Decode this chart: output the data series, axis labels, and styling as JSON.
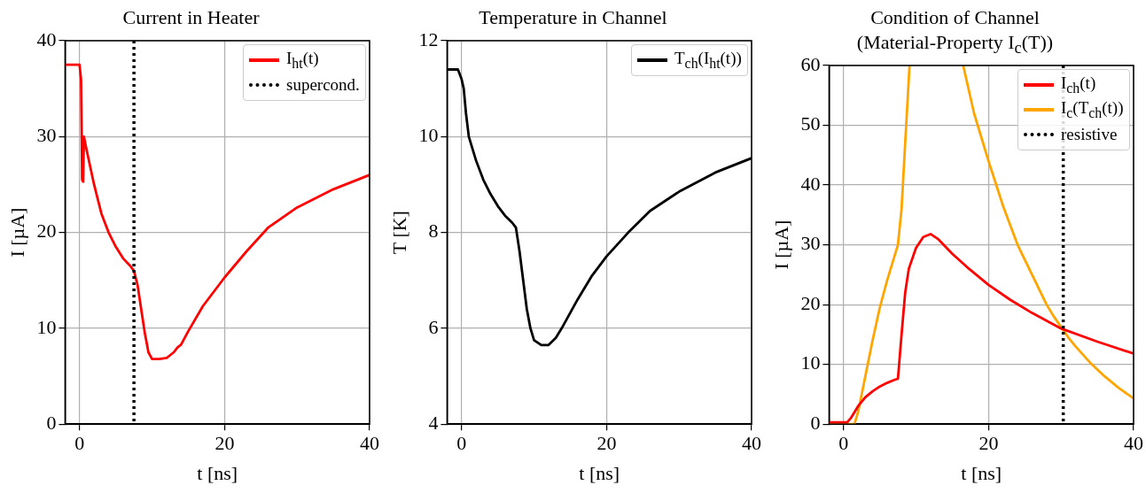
{
  "chart_data": [
    {
      "type": "line",
      "title": "Current in Heater",
      "xlabel": "t [ns]",
      "ylabel": "I [µA]",
      "xlim": [
        -2,
        40
      ],
      "xticks": [
        0,
        20,
        40
      ],
      "ylim": [
        0,
        40
      ],
      "yticks": [
        0,
        10,
        20,
        30,
        40
      ],
      "grid": true,
      "legend": "top right",
      "line_style": "solid",
      "marker": "none",
      "series": [
        {
          "name": "I$_{ht}$(t)",
          "color": "#ff0000",
          "x": [
            -2,
            0,
            0.2,
            0.3,
            0.35,
            0.5,
            0.6,
            1,
            2,
            3,
            4,
            5,
            6,
            7,
            7.5,
            8,
            8.5,
            9,
            9.5,
            10,
            11,
            12,
            13,
            13.5,
            14,
            15,
            17,
            20,
            23,
            26,
            30,
            35,
            40
          ],
          "values": [
            37.5,
            37.5,
            36,
            30,
            25.5,
            25.3,
            30,
            28.5,
            25,
            22,
            20,
            18.5,
            17.3,
            16.5,
            16,
            14.5,
            12,
            9.5,
            7.5,
            6.8,
            6.8,
            6.9,
            7.5,
            8,
            8.3,
            9.7,
            12.3,
            15.3,
            18,
            20.5,
            22.6,
            24.5,
            26
          ]
        }
      ],
      "ref_lines": [
        {
          "axis": "x",
          "value": 7.5,
          "label": "supercond.",
          "color": "#000000",
          "line_style": "dotted"
        }
      ]
    },
    {
      "type": "line",
      "title": "Temperature in Channel",
      "xlabel": "t [ns]",
      "ylabel": "T [K]",
      "xlim": [
        -2,
        40
      ],
      "xticks": [
        0,
        20,
        40
      ],
      "ylim": [
        4,
        12
      ],
      "yticks": [
        4,
        6,
        8,
        10,
        12
      ],
      "grid": true,
      "legend": "top right",
      "line_style": "solid",
      "marker": "none",
      "series": [
        {
          "name": "T$_{ch}$(I$_{ht}$(t))",
          "color": "#000000",
          "x": [
            -2,
            -0.5,
            0,
            0.3,
            0.6,
            1,
            2,
            3,
            4,
            5,
            6,
            7,
            7.5,
            8,
            8.5,
            9,
            9.5,
            10,
            11,
            12,
            13,
            14,
            16,
            18,
            20,
            23,
            26,
            30,
            35,
            40
          ],
          "values": [
            11.4,
            11.4,
            11.2,
            11,
            10.5,
            10,
            9.5,
            9.1,
            8.8,
            8.55,
            8.35,
            8.2,
            8.1,
            7.6,
            7,
            6.4,
            6,
            5.75,
            5.65,
            5.65,
            5.8,
            6.05,
            6.6,
            7.1,
            7.5,
            8,
            8.45,
            8.85,
            9.25,
            9.55
          ]
        }
      ]
    },
    {
      "type": "line",
      "title": "Condition of Channel\n(Material-Property I$_{c}$(T))",
      "xlabel": "t [ns]",
      "ylabel": "I [µA]",
      "xlim": [
        -2,
        40
      ],
      "xticks": [
        0,
        20,
        40
      ],
      "ylim": [
        0,
        60
      ],
      "yticks": [
        0,
        10,
        20,
        30,
        40,
        50,
        60
      ],
      "grid": true,
      "legend": "top right",
      "line_style": "solid",
      "marker": "none",
      "series": [
        {
          "name": "I$_{ch}$(t)",
          "color": "#ff0000",
          "x": [
            -2,
            0.5,
            1,
            2,
            3,
            4,
            5,
            6,
            7,
            7.5,
            8,
            8.5,
            9,
            10,
            11,
            12,
            13,
            15,
            17,
            20,
            23,
            26,
            30,
            35,
            40
          ],
          "values": [
            0.3,
            0.3,
            1,
            3,
            4.5,
            5.5,
            6.3,
            6.9,
            7.4,
            7.6,
            15,
            22,
            26,
            29.5,
            31.3,
            31.8,
            31,
            28.5,
            26.3,
            23.3,
            20.8,
            18.6,
            16,
            13.8,
            11.8
          ]
        },
        {
          "name": "I$_{c}$(T$_{ch}$(t))",
          "color": "#ffa500",
          "x": [
            -2,
            1.5,
            2,
            3,
            4,
            5,
            6,
            7,
            7.5,
            8,
            8.5,
            9.1,
            12,
            16.5,
            18,
            20,
            22,
            24,
            26,
            28,
            29,
            31,
            32,
            34,
            36,
            38,
            40
          ],
          "values": [
            0,
            0,
            2,
            8,
            14,
            19.5,
            24,
            28,
            30,
            36,
            47,
            60,
            null,
            60,
            52,
            44,
            36.5,
            30,
            25,
            20,
            18,
            14.5,
            13,
            10.3,
            8,
            6,
            4.3
          ]
        }
      ],
      "ref_lines": [
        {
          "axis": "x",
          "value": 30.3,
          "label": "resistive",
          "color": "#000000",
          "line_style": "dotted"
        }
      ]
    }
  ]
}
